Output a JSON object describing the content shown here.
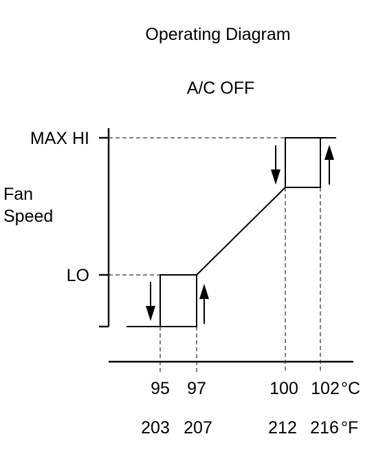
{
  "title": "Operating Diagram",
  "subtitle": "A/C OFF",
  "y_axis": {
    "label_line1": "Fan",
    "label_line2": "Speed",
    "levels": [
      "MAX HI",
      "LO"
    ]
  },
  "x_axis": {
    "celsius_ticks": [
      "95",
      "97",
      "100",
      "102"
    ],
    "celsius_unit": "°C",
    "fahrenheit_ticks": [
      "203",
      "207",
      "212",
      "216"
    ],
    "fahrenheit_unit": "°F"
  }
}
